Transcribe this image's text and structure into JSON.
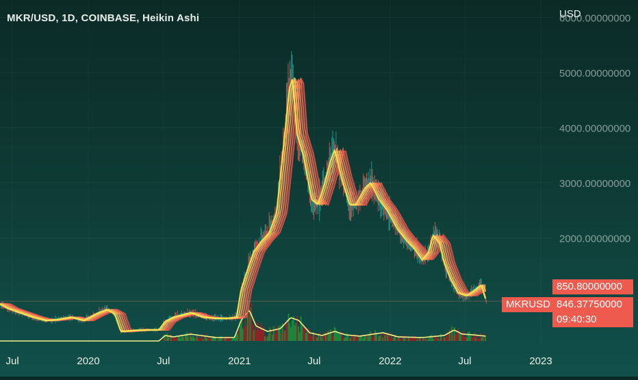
{
  "header": {
    "title": "MKR/USD, 1D, COINBASE, Heikin Ashi",
    "currency": "USD"
  },
  "price_tags": {
    "symbol": "MKRUSD",
    "last_price": "850.80000000",
    "current_price": "846.37750000",
    "countdown": "09:40:30"
  },
  "colors": {
    "background_top": "#0b2a26",
    "background_bottom": "#11504a",
    "ribbon_line": "#ffe94d",
    "ribbon_warm": "#f07a55",
    "up_candle": "#26a69a",
    "down_candle": "#ef5350",
    "volume_line": "#f5f08a",
    "price_tag": "#ef5a4f"
  },
  "chart_data": {
    "type": "line",
    "title": "MKR/USD, 1D, COINBASE, Heikin Ashi",
    "ylabel": "USD",
    "y_ticks": [
      "6000.00000000",
      "5000.00000000",
      "4000.00000000",
      "3000.00000000",
      "2000.00000000"
    ],
    "x_ticks": [
      "Jul",
      "2020",
      "Jul",
      "2021",
      "Jul",
      "2022",
      "Jul",
      "2023"
    ],
    "grid": true,
    "series": [
      {
        "name": "MKRUSD",
        "points": [
          [
            "2019-06-01",
            800
          ],
          [
            "2019-06-20",
            720
          ],
          [
            "2019-07-20",
            640
          ],
          [
            "2019-08-20",
            560
          ],
          [
            "2019-09-20",
            500
          ],
          [
            "2019-10-20",
            520
          ],
          [
            "2019-11-20",
            560
          ],
          [
            "2019-12-20",
            500
          ],
          [
            "2020-01-20",
            620
          ],
          [
            "2020-02-15",
            700
          ],
          [
            "2020-03-05",
            620
          ],
          [
            "2020-03-20",
            300
          ],
          [
            "2020-04-20",
            320
          ],
          [
            "2020-05-20",
            330
          ],
          [
            "2020-06-20",
            330
          ],
          [
            "2020-07-05",
            480
          ],
          [
            "2020-07-25",
            560
          ],
          [
            "2020-08-25",
            620
          ],
          [
            "2020-09-05",
            640
          ],
          [
            "2020-10-05",
            560
          ],
          [
            "2020-11-05",
            540
          ],
          [
            "2020-12-05",
            540
          ],
          [
            "2020-12-25",
            560
          ],
          [
            "2021-01-05",
            1050
          ],
          [
            "2021-01-20",
            1400
          ],
          [
            "2021-02-05",
            1750
          ],
          [
            "2021-02-25",
            1950
          ],
          [
            "2021-03-15",
            2100
          ],
          [
            "2021-04-01",
            2450
          ],
          [
            "2021-04-20",
            3800
          ],
          [
            "2021-05-02",
            4700
          ],
          [
            "2021-05-10",
            4900
          ],
          [
            "2021-05-20",
            3900
          ],
          [
            "2021-06-05",
            3500
          ],
          [
            "2021-06-25",
            2700
          ],
          [
            "2021-07-10",
            2600
          ],
          [
            "2021-07-25",
            2950
          ],
          [
            "2021-08-10",
            3400
          ],
          [
            "2021-08-20",
            3600
          ],
          [
            "2021-09-05",
            3100
          ],
          [
            "2021-09-25",
            2600
          ],
          [
            "2021-10-10",
            2600
          ],
          [
            "2021-11-01",
            2900
          ],
          [
            "2021-11-15",
            3000
          ],
          [
            "2021-12-05",
            2700
          ],
          [
            "2021-12-25",
            2500
          ],
          [
            "2022-01-20",
            2150
          ],
          [
            "2022-02-10",
            1950
          ],
          [
            "2022-03-01",
            1800
          ],
          [
            "2022-03-20",
            1600
          ],
          [
            "2022-04-05",
            1750
          ],
          [
            "2022-04-15",
            2050
          ],
          [
            "2022-05-01",
            1900
          ],
          [
            "2022-05-12",
            1550
          ],
          [
            "2022-05-28",
            1250
          ],
          [
            "2022-06-15",
            1000
          ],
          [
            "2022-07-05",
            950
          ],
          [
            "2022-07-25",
            1050
          ],
          [
            "2022-08-10",
            1150
          ],
          [
            "2022-08-22",
            850
          ]
        ]
      },
      {
        "name": "Volume",
        "points": [
          [
            "2019-06-01",
            0
          ],
          [
            "2020-06-20",
            0
          ],
          [
            "2020-07-05",
            8
          ],
          [
            "2020-07-25",
            6
          ],
          [
            "2020-09-05",
            10
          ],
          [
            "2020-11-05",
            5
          ],
          [
            "2020-12-20",
            5
          ],
          [
            "2021-01-05",
            30
          ],
          [
            "2021-01-25",
            45
          ],
          [
            "2021-02-10",
            22
          ],
          [
            "2021-03-10",
            14
          ],
          [
            "2021-04-10",
            18
          ],
          [
            "2021-05-05",
            34
          ],
          [
            "2021-05-25",
            30
          ],
          [
            "2021-06-20",
            12
          ],
          [
            "2021-07-20",
            8
          ],
          [
            "2021-08-20",
            14
          ],
          [
            "2021-09-15",
            9
          ],
          [
            "2021-10-20",
            7
          ],
          [
            "2021-11-20",
            10
          ],
          [
            "2021-12-15",
            12
          ],
          [
            "2022-01-20",
            6
          ],
          [
            "2022-03-20",
            5
          ],
          [
            "2022-05-12",
            8
          ],
          [
            "2022-06-05",
            16
          ],
          [
            "2022-06-25",
            10
          ],
          [
            "2022-07-20",
            9
          ],
          [
            "2022-08-22",
            7
          ]
        ]
      }
    ]
  }
}
